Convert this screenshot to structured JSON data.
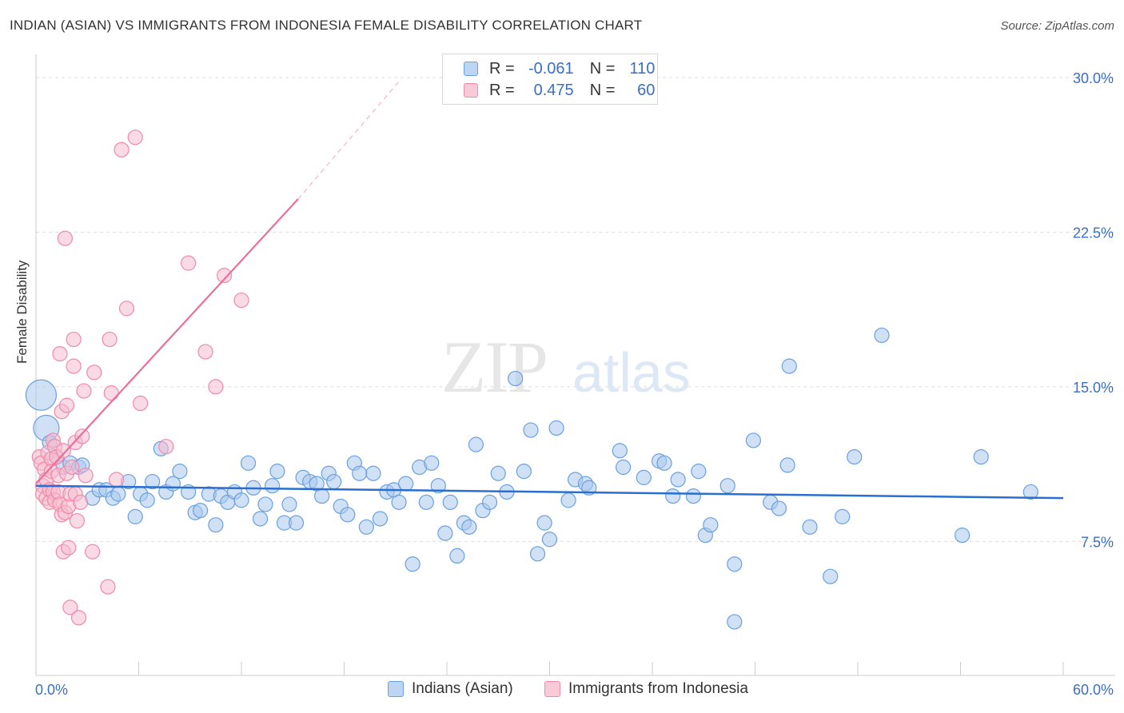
{
  "header": {
    "title": "INDIAN (ASIAN) VS IMMIGRANTS FROM INDONESIA FEMALE DISABILITY CORRELATION CHART",
    "source": "Source: ZipAtlas.com"
  },
  "legend": {
    "r_label": "R =",
    "n_label": "N =",
    "rows": [
      {
        "r": "-0.061",
        "n": "110",
        "color": "#6aa0e0"
      },
      {
        "r": "0.475",
        "n": "60",
        "color": "#f08aaa"
      }
    ]
  },
  "watermark": {
    "zip": "ZIP",
    "atlas": "atlas"
  },
  "colors": {
    "blue_fill": "#a9c8ee",
    "blue_stroke": "#6aa0e0",
    "blue_line": "#2a6fd0",
    "pink_fill": "#f5bccd",
    "pink_stroke": "#f08aaa",
    "pink_line": "#e8709a",
    "tick_label": "#3a6fc4",
    "grid": "#dddddd"
  },
  "chart_data": {
    "type": "scatter",
    "title": "INDIAN (ASIAN) VS IMMIGRANTS FROM INDONESIA FEMALE DISABILITY CORRELATION CHART",
    "xlabel": "",
    "ylabel": "Female Disability",
    "xlim": [
      0,
      60
    ],
    "ylim": [
      0,
      31.5
    ],
    "x_tick_labels": [
      "0.0%",
      "60.0%"
    ],
    "y_ticks": [
      7.5,
      15.0,
      22.5,
      30.0
    ],
    "y_tick_labels": [
      "7.5%",
      "15.0%",
      "22.5%",
      "30.0%"
    ],
    "grid": "horizontal dashed",
    "series": [
      {
        "name": "Indians (Asian)",
        "r": -0.061,
        "n": 110,
        "trend": {
          "x": [
            0,
            60
          ],
          "y": [
            10.2,
            9.6
          ]
        },
        "points": [
          {
            "x": 0.3,
            "y": 14.6,
            "big": 2
          },
          {
            "x": 0.6,
            "y": 13.0,
            "big": 1
          },
          {
            "x": 0.8,
            "y": 12.3
          },
          {
            "x": 1.2,
            "y": 11.6
          },
          {
            "x": 1.6,
            "y": 11.1
          },
          {
            "x": 2.0,
            "y": 11.3
          },
          {
            "x": 2.5,
            "y": 11.1
          },
          {
            "x": 2.7,
            "y": 11.2
          },
          {
            "x": 3.3,
            "y": 9.6
          },
          {
            "x": 3.7,
            "y": 10.0
          },
          {
            "x": 4.1,
            "y": 10.0
          },
          {
            "x": 4.5,
            "y": 9.6
          },
          {
            "x": 4.8,
            "y": 9.8
          },
          {
            "x": 5.4,
            "y": 10.4
          },
          {
            "x": 5.8,
            "y": 8.7
          },
          {
            "x": 6.1,
            "y": 9.8
          },
          {
            "x": 6.5,
            "y": 9.5
          },
          {
            "x": 6.8,
            "y": 10.4
          },
          {
            "x": 7.3,
            "y": 12.0
          },
          {
            "x": 7.6,
            "y": 9.9
          },
          {
            "x": 8.0,
            "y": 10.3
          },
          {
            "x": 8.4,
            "y": 10.9
          },
          {
            "x": 8.9,
            "y": 9.9
          },
          {
            "x": 9.3,
            "y": 8.9
          },
          {
            "x": 9.6,
            "y": 9.0
          },
          {
            "x": 10.1,
            "y": 9.8
          },
          {
            "x": 10.5,
            "y": 8.3
          },
          {
            "x": 10.8,
            "y": 9.7
          },
          {
            "x": 11.2,
            "y": 9.4
          },
          {
            "x": 11.6,
            "y": 9.9
          },
          {
            "x": 12.0,
            "y": 9.5
          },
          {
            "x": 12.4,
            "y": 11.3
          },
          {
            "x": 12.7,
            "y": 10.1
          },
          {
            "x": 13.1,
            "y": 8.6
          },
          {
            "x": 13.4,
            "y": 9.3
          },
          {
            "x": 13.8,
            "y": 10.2
          },
          {
            "x": 14.1,
            "y": 10.9
          },
          {
            "x": 14.5,
            "y": 8.4
          },
          {
            "x": 14.8,
            "y": 9.3
          },
          {
            "x": 15.2,
            "y": 8.4
          },
          {
            "x": 15.6,
            "y": 10.6
          },
          {
            "x": 16.0,
            "y": 10.4
          },
          {
            "x": 16.4,
            "y": 10.3
          },
          {
            "x": 16.7,
            "y": 9.7
          },
          {
            "x": 17.1,
            "y": 10.8
          },
          {
            "x": 17.4,
            "y": 10.4
          },
          {
            "x": 17.8,
            "y": 9.2
          },
          {
            "x": 18.2,
            "y": 8.8
          },
          {
            "x": 18.6,
            "y": 11.3
          },
          {
            "x": 18.9,
            "y": 10.8
          },
          {
            "x": 19.3,
            "y": 8.2
          },
          {
            "x": 19.7,
            "y": 10.8
          },
          {
            "x": 20.1,
            "y": 8.6
          },
          {
            "x": 20.5,
            "y": 9.9
          },
          {
            "x": 20.9,
            "y": 10.0
          },
          {
            "x": 21.2,
            "y": 9.4
          },
          {
            "x": 21.6,
            "y": 10.3
          },
          {
            "x": 22.0,
            "y": 6.4
          },
          {
            "x": 22.4,
            "y": 11.1
          },
          {
            "x": 22.8,
            "y": 9.4
          },
          {
            "x": 23.1,
            "y": 11.3
          },
          {
            "x": 23.5,
            "y": 10.2
          },
          {
            "x": 23.9,
            "y": 7.9
          },
          {
            "x": 24.2,
            "y": 9.4
          },
          {
            "x": 24.6,
            "y": 6.8
          },
          {
            "x": 25.0,
            "y": 8.4
          },
          {
            "x": 25.3,
            "y": 8.2
          },
          {
            "x": 25.7,
            "y": 12.2
          },
          {
            "x": 26.1,
            "y": 9.0
          },
          {
            "x": 26.5,
            "y": 9.4
          },
          {
            "x": 27.0,
            "y": 10.8
          },
          {
            "x": 27.5,
            "y": 9.9
          },
          {
            "x": 28.0,
            "y": 15.4
          },
          {
            "x": 28.5,
            "y": 10.9
          },
          {
            "x": 28.9,
            "y": 12.9
          },
          {
            "x": 29.3,
            "y": 6.9
          },
          {
            "x": 29.7,
            "y": 8.4
          },
          {
            "x": 30.0,
            "y": 7.6
          },
          {
            "x": 30.4,
            "y": 13.0
          },
          {
            "x": 31.1,
            "y": 9.5
          },
          {
            "x": 31.5,
            "y": 10.5
          },
          {
            "x": 32.1,
            "y": 10.3
          },
          {
            "x": 32.3,
            "y": 10.1
          },
          {
            "x": 34.1,
            "y": 11.9
          },
          {
            "x": 34.3,
            "y": 11.1
          },
          {
            "x": 35.5,
            "y": 10.6
          },
          {
            "x": 36.4,
            "y": 11.4
          },
          {
            "x": 36.7,
            "y": 11.3
          },
          {
            "x": 37.2,
            "y": 9.7
          },
          {
            "x": 37.5,
            "y": 10.5
          },
          {
            "x": 38.4,
            "y": 9.7
          },
          {
            "x": 38.7,
            "y": 10.9
          },
          {
            "x": 39.1,
            "y": 7.8
          },
          {
            "x": 39.4,
            "y": 8.3
          },
          {
            "x": 40.4,
            "y": 10.2
          },
          {
            "x": 40.8,
            "y": 6.4
          },
          {
            "x": 40.8,
            "y": 3.6
          },
          {
            "x": 41.9,
            "y": 12.4
          },
          {
            "x": 42.9,
            "y": 9.4
          },
          {
            "x": 43.4,
            "y": 9.1
          },
          {
            "x": 43.9,
            "y": 11.2
          },
          {
            "x": 44.0,
            "y": 16.0
          },
          {
            "x": 45.2,
            "y": 8.2
          },
          {
            "x": 46.4,
            "y": 5.8
          },
          {
            "x": 47.1,
            "y": 8.7
          },
          {
            "x": 47.8,
            "y": 11.6
          },
          {
            "x": 49.4,
            "y": 17.5
          },
          {
            "x": 54.1,
            "y": 7.8
          },
          {
            "x": 55.2,
            "y": 11.6
          },
          {
            "x": 58.1,
            "y": 9.9
          }
        ]
      },
      {
        "name": "Immigrants from Indonesia",
        "r": 0.475,
        "n": 60,
        "trend": {
          "x": [
            0,
            15.3
          ],
          "y": [
            10.3,
            24.1
          ]
        },
        "trend_extension": {
          "x": [
            15.3,
            21.3
          ],
          "y": [
            24.1,
            29.9
          ]
        },
        "points": [
          {
            "x": 0.2,
            "y": 11.6
          },
          {
            "x": 0.3,
            "y": 11.3
          },
          {
            "x": 0.4,
            "y": 10.2
          },
          {
            "x": 0.4,
            "y": 9.8
          },
          {
            "x": 0.5,
            "y": 11.0
          },
          {
            "x": 0.6,
            "y": 10.5
          },
          {
            "x": 0.6,
            "y": 9.6
          },
          {
            "x": 0.7,
            "y": 11.8
          },
          {
            "x": 0.8,
            "y": 10.0
          },
          {
            "x": 0.8,
            "y": 9.4
          },
          {
            "x": 0.9,
            "y": 11.5
          },
          {
            "x": 0.9,
            "y": 10.9
          },
          {
            "x": 1.0,
            "y": 12.4
          },
          {
            "x": 1.0,
            "y": 9.9
          },
          {
            "x": 1.1,
            "y": 12.1
          },
          {
            "x": 1.1,
            "y": 9.5
          },
          {
            "x": 1.2,
            "y": 11.6
          },
          {
            "x": 1.3,
            "y": 10.7
          },
          {
            "x": 1.3,
            "y": 9.9
          },
          {
            "x": 1.4,
            "y": 16.6
          },
          {
            "x": 1.4,
            "y": 9.3
          },
          {
            "x": 1.5,
            "y": 13.8
          },
          {
            "x": 1.5,
            "y": 8.8
          },
          {
            "x": 1.6,
            "y": 7.0
          },
          {
            "x": 1.6,
            "y": 11.9
          },
          {
            "x": 1.7,
            "y": 22.2
          },
          {
            "x": 1.7,
            "y": 8.9
          },
          {
            "x": 1.8,
            "y": 10.8
          },
          {
            "x": 1.8,
            "y": 14.1
          },
          {
            "x": 1.9,
            "y": 9.2
          },
          {
            "x": 1.9,
            "y": 7.2
          },
          {
            "x": 2.0,
            "y": 4.3
          },
          {
            "x": 2.0,
            "y": 9.8
          },
          {
            "x": 2.1,
            "y": 11.1
          },
          {
            "x": 2.2,
            "y": 17.3
          },
          {
            "x": 2.2,
            "y": 16.0
          },
          {
            "x": 2.3,
            "y": 12.3
          },
          {
            "x": 2.3,
            "y": 9.8
          },
          {
            "x": 2.4,
            "y": 8.5
          },
          {
            "x": 2.5,
            "y": 3.8
          },
          {
            "x": 2.6,
            "y": 9.4
          },
          {
            "x": 2.7,
            "y": 12.6
          },
          {
            "x": 2.8,
            "y": 14.8
          },
          {
            "x": 2.9,
            "y": 10.7
          },
          {
            "x": 3.3,
            "y": 7.0
          },
          {
            "x": 3.4,
            "y": 15.7
          },
          {
            "x": 4.2,
            "y": 5.3
          },
          {
            "x": 4.3,
            "y": 17.3
          },
          {
            "x": 4.4,
            "y": 14.7
          },
          {
            "x": 4.7,
            "y": 10.5
          },
          {
            "x": 5.0,
            "y": 26.5
          },
          {
            "x": 5.3,
            "y": 18.8
          },
          {
            "x": 5.8,
            "y": 27.1
          },
          {
            "x": 6.1,
            "y": 14.2
          },
          {
            "x": 7.6,
            "y": 12.1
          },
          {
            "x": 8.9,
            "y": 21.0
          },
          {
            "x": 9.9,
            "y": 16.7
          },
          {
            "x": 10.5,
            "y": 15.0
          },
          {
            "x": 11.0,
            "y": 20.4
          },
          {
            "x": 12.0,
            "y": 19.2
          }
        ]
      }
    ]
  }
}
